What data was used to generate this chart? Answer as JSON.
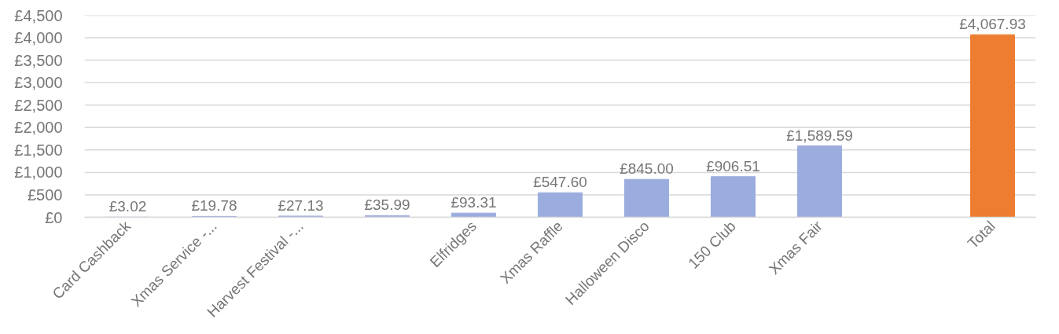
{
  "chart_data": {
    "type": "bar",
    "categories": [
      "Card Cashback",
      "Xmas Service -...",
      "Harvest Festival -...",
      null,
      "Elfridges",
      "Xmas Raffle",
      "Halloween Disco",
      "150 Club",
      "Xmas Fair",
      null,
      "Total"
    ],
    "values": [
      3.02,
      19.78,
      27.13,
      35.99,
      93.31,
      547.6,
      845.0,
      906.51,
      1589.59,
      null,
      4067.93
    ],
    "colors": [
      "#9badde",
      "#9badde",
      "#9badde",
      "#9badde",
      "#9badde",
      "#9badde",
      "#9badde",
      "#9badde",
      "#9badde",
      "#9badde",
      "#ed7d31"
    ],
    "value_labels": [
      "£3.02",
      "£19.78",
      "£27.13",
      "£35.99",
      "£93.31",
      "£547.60",
      "£845.00",
      "£906.51",
      "£1,589.59",
      null,
      "£4,067.93"
    ],
    "ylim": [
      0,
      4500
    ],
    "yticks": [
      {
        "value": 0,
        "label": "£0"
      },
      {
        "value": 500,
        "label": "£500"
      },
      {
        "value": 1000,
        "label": "£1,000"
      },
      {
        "value": 1500,
        "label": "£1,500"
      },
      {
        "value": 2000,
        "label": "£2,000"
      },
      {
        "value": 2500,
        "label": "£2,500"
      },
      {
        "value": 3000,
        "label": "£3,000"
      },
      {
        "value": 3500,
        "label": "£3,500"
      },
      {
        "value": 4000,
        "label": "£4,000"
      },
      {
        "value": 4500,
        "label": "£4,500"
      }
    ],
    "grid": "y"
  }
}
